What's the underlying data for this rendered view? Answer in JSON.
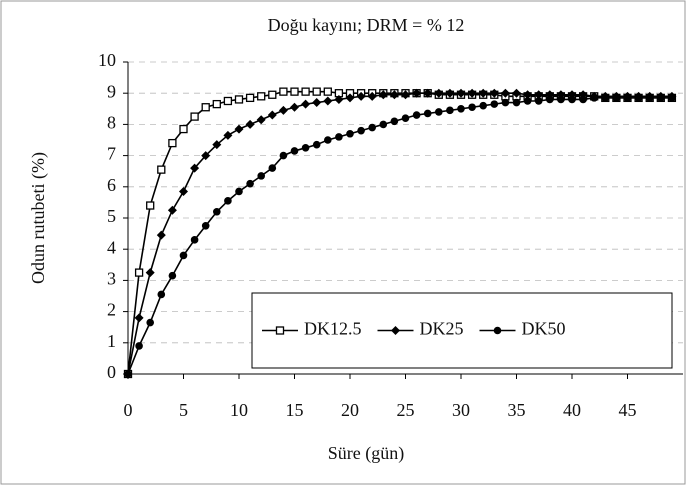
{
  "chart_data": {
    "type": "line",
    "title": "Doğu kayını; DRM = % 12",
    "xlabel": "Süre (gün)",
    "ylabel": "Odun rutubeti (%)",
    "x": [
      0,
      1,
      2,
      3,
      4,
      5,
      6,
      7,
      8,
      9,
      10,
      11,
      12,
      13,
      14,
      15,
      16,
      17,
      18,
      19,
      20,
      21,
      22,
      23,
      24,
      25,
      26,
      27,
      28,
      29,
      30,
      31,
      32,
      33,
      34,
      35,
      36,
      37,
      38,
      39,
      40,
      41,
      42,
      43,
      44,
      45,
      46,
      47,
      48,
      49
    ],
    "series": [
      {
        "name": "DK12.5",
        "color": "#000000",
        "marker": "square",
        "values": [
          0,
          3.25,
          5.4,
          6.55,
          7.4,
          7.85,
          8.25,
          8.55,
          8.65,
          8.75,
          8.8,
          8.85,
          8.9,
          8.95,
          9.05,
          9.05,
          9.05,
          9.05,
          9.05,
          9.0,
          9.0,
          9.0,
          9.0,
          9.0,
          9.0,
          9.0,
          9.0,
          9.0,
          8.95,
          8.95,
          8.95,
          8.95,
          8.95,
          8.95,
          8.9,
          8.9,
          8.9,
          8.9,
          8.9,
          8.9,
          8.9,
          8.9,
          8.9,
          8.85,
          8.85,
          8.85,
          8.85,
          8.85,
          8.85,
          8.85
        ]
      },
      {
        "name": "DK25",
        "color": "#000000",
        "marker": "diamond",
        "values": [
          0,
          1.8,
          3.25,
          4.45,
          5.25,
          5.85,
          6.6,
          7.0,
          7.35,
          7.65,
          7.85,
          8.0,
          8.15,
          8.3,
          8.45,
          8.55,
          8.65,
          8.7,
          8.75,
          8.8,
          8.85,
          8.9,
          8.9,
          8.95,
          8.95,
          8.95,
          9.0,
          9.0,
          9.0,
          9.0,
          9.0,
          9.0,
          9.0,
          9.0,
          9.0,
          9.0,
          8.95,
          8.95,
          8.95,
          8.95,
          8.95,
          8.95,
          8.9,
          8.9,
          8.9,
          8.9,
          8.9,
          8.9,
          8.9,
          8.9
        ]
      },
      {
        "name": "DK50",
        "color": "#000000",
        "marker": "circle",
        "values": [
          0,
          0.9,
          1.65,
          2.55,
          3.15,
          3.8,
          4.3,
          4.75,
          5.2,
          5.55,
          5.85,
          6.1,
          6.35,
          6.6,
          7.0,
          7.15,
          7.25,
          7.35,
          7.5,
          7.6,
          7.7,
          7.8,
          7.9,
          8.0,
          8.1,
          8.2,
          8.3,
          8.35,
          8.4,
          8.45,
          8.5,
          8.55,
          8.6,
          8.65,
          8.7,
          8.7,
          8.75,
          8.75,
          8.8,
          8.8,
          8.8,
          8.8,
          8.85,
          8.85,
          8.85,
          8.85,
          8.85,
          8.85,
          8.85,
          8.85
        ]
      }
    ],
    "xlim": [
      0,
      50
    ],
    "xticks": [
      0,
      5,
      10,
      15,
      20,
      25,
      30,
      35,
      40,
      45
    ],
    "ylim": [
      0,
      10
    ],
    "yticks": [
      0,
      1,
      2,
      3,
      4,
      5,
      6,
      7,
      8,
      9,
      10
    ],
    "grid": true,
    "legend": "lower right"
  }
}
